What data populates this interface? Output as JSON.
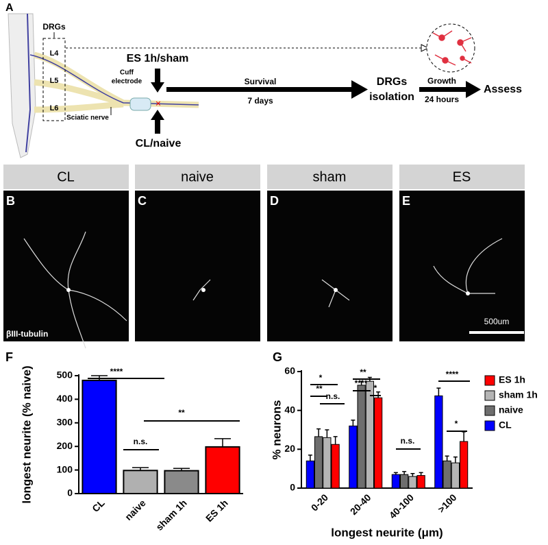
{
  "schematic": {
    "panel_label": "A",
    "drg_label": "DRGs",
    "levels": [
      "L4",
      "L5",
      "L6"
    ],
    "stimulation": "ES 1h/sham",
    "cuff_label": [
      "Cuff",
      "electrode"
    ],
    "sciatic_label": "Sciatic nerve",
    "control": "CL/naive",
    "survival": "Survival",
    "survival_time": "7 days",
    "isolation": [
      "DRGs",
      "isolation"
    ],
    "growth": "Growth",
    "growth_time": "24 hours",
    "assess": "Assess"
  },
  "micrographs": {
    "panels": [
      {
        "letter": "B",
        "label": "CL"
      },
      {
        "letter": "C",
        "label": "naive"
      },
      {
        "letter": "D",
        "label": "sham"
      },
      {
        "letter": "E",
        "label": "ES"
      }
    ],
    "stain_label": "βIII-tubulin",
    "scale_bar_label": "500um"
  },
  "chart_data": [
    {
      "type": "bar",
      "panel_label": "F",
      "ylabel": "longest neurite (% naive)",
      "categories": [
        "CL",
        "naive",
        "sham 1h",
        "ES 1h"
      ],
      "values": [
        480,
        98,
        97,
        198
      ],
      "errors": [
        20,
        12,
        10,
        35
      ],
      "colors": [
        "#0000ff",
        "#b0b0b0",
        "#8a8a8a",
        "#ff0000"
      ],
      "ylim": [
        0,
        500
      ],
      "yticks": [
        0,
        100,
        200,
        300,
        400,
        500
      ],
      "annotations": [
        "****",
        "n.s.",
        "**"
      ]
    },
    {
      "type": "bar",
      "panel_label": "G",
      "ylabel": "% neurons",
      "xlabel": "longest neurite (μm)",
      "categories": [
        "0-20",
        "20-40",
        "40-100",
        ">100"
      ],
      "series": [
        {
          "name": "CL",
          "color": "#0000ff",
          "values": [
            14,
            32,
            7,
            47.5
          ],
          "errors": [
            3,
            3,
            1,
            4
          ]
        },
        {
          "name": "naive",
          "color": "#6e6e6e",
          "values": [
            26.5,
            53,
            7,
            14
          ],
          "errors": [
            4,
            2,
            1.5,
            2.5
          ]
        },
        {
          "name": "sham 1h",
          "color": "#b5b5b5",
          "values": [
            26,
            55,
            6,
            13
          ],
          "errors": [
            4,
            2,
            1.5,
            3
          ]
        },
        {
          "name": "ES 1h",
          "color": "#ff0000",
          "values": [
            22.5,
            46.5,
            6.5,
            24
          ],
          "errors": [
            4,
            3,
            1.5,
            5
          ]
        }
      ],
      "ylim": [
        0,
        60
      ],
      "yticks": [
        0,
        20,
        40,
        60
      ],
      "legend": "right",
      "annotations": [
        "*",
        "**",
        "n.s.",
        "**",
        "****",
        "*",
        "n.s.",
        "****",
        "*"
      ]
    }
  ]
}
